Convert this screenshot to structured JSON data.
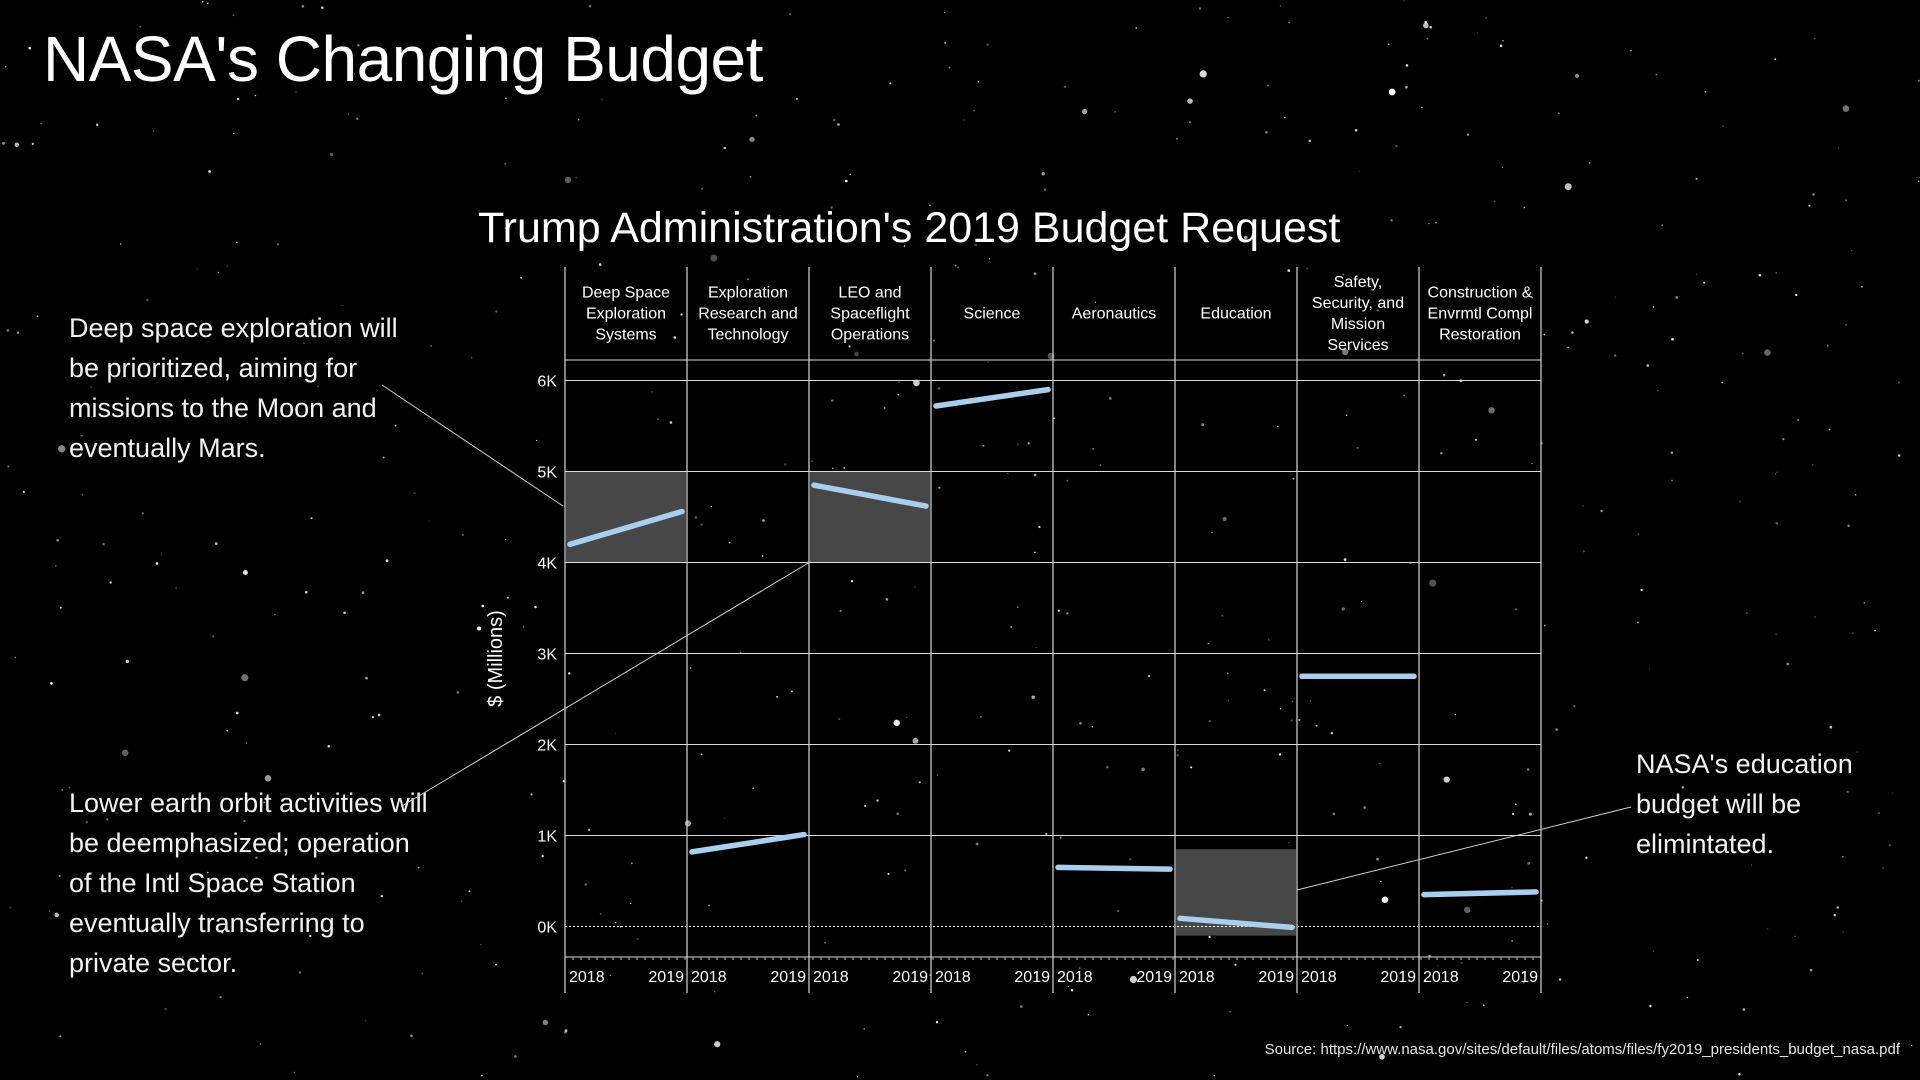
{
  "page": {
    "title": "NASA's Changing Budget",
    "source": "Source: https://www.nasa.gov/sites/default/files/atoms/files/fy2019_presidents_budget_nasa.pdf"
  },
  "annotations": {
    "deep_space": "Deep space exploration will be prioritized, aiming for missions to the Moon and eventually Mars.",
    "leo": "Lower earth orbit activities will be deemphasized; operation of the Intl Space Station eventually transferring to private sector.",
    "education": "NASA's education budget will be elimintated."
  },
  "colors": {
    "background": "#000000",
    "line": "#a9cfee",
    "highlight": "#474747",
    "grid": "#d9d9d9"
  },
  "chart_data": {
    "type": "line",
    "title": "Trump Administration's 2019 Budget Request",
    "ylabel": "$ (Millions)",
    "ylim": [
      -330,
      6650
    ],
    "yticks": [
      0,
      1000,
      2000,
      3000,
      4000,
      5000,
      6000
    ],
    "ytick_labels": [
      "0K",
      "1K",
      "2K",
      "3K",
      "4K",
      "5K",
      "6K"
    ],
    "x": [
      "2018",
      "2019"
    ],
    "grid": true,
    "series": [
      {
        "name": "Deep Space Exploration Systems",
        "values": [
          4200,
          4560
        ],
        "highlight": [
          4000,
          5000
        ]
      },
      {
        "name": "Exploration Research and Technology",
        "values": [
          820,
          1010
        ]
      },
      {
        "name": "LEO and Spaceflight Operations",
        "values": [
          4850,
          4620
        ],
        "highlight": [
          4000,
          5000
        ]
      },
      {
        "name": "Science",
        "values": [
          5720,
          5900
        ]
      },
      {
        "name": "Aeronautics",
        "values": [
          650,
          630
        ]
      },
      {
        "name": "Education",
        "values": [
          90,
          -10
        ],
        "highlight": [
          -100,
          850
        ]
      },
      {
        "name": "Safety, Security, and Mission Services",
        "values": [
          2750,
          2750
        ]
      },
      {
        "name": "Construction & Envrmtl Compl Restoration",
        "values": [
          350,
          380
        ]
      }
    ]
  }
}
